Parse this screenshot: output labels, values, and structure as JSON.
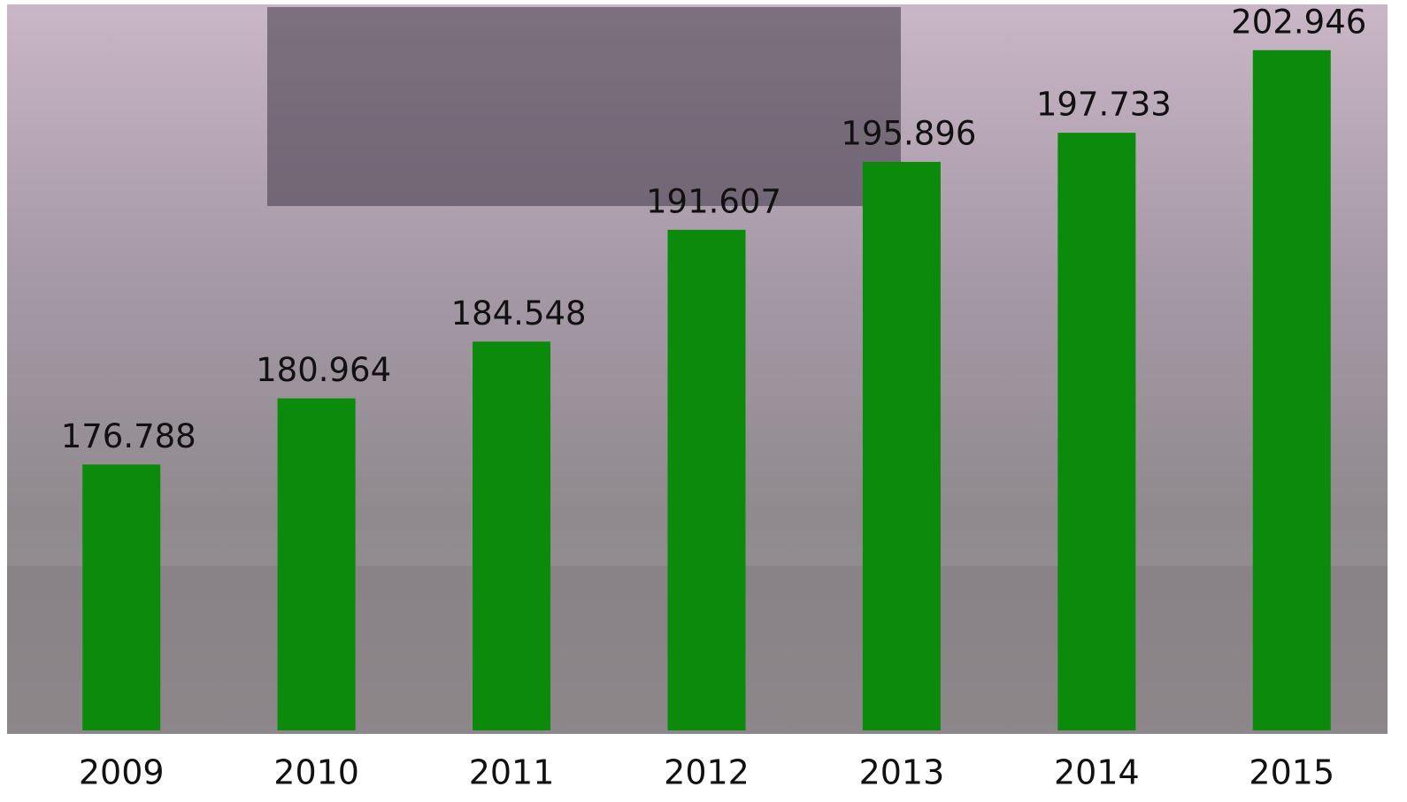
{
  "chart_data": {
    "type": "bar",
    "categories": [
      "2009",
      "2010",
      "2011",
      "2012",
      "2013",
      "2014",
      "2015"
    ],
    "values": [
      176788,
      180964,
      184548,
      191607,
      195896,
      197733,
      202946
    ],
    "value_labels": [
      "176.788",
      "180.964",
      "184.548",
      "191.607",
      "195.896",
      "197.733",
      "202.946"
    ],
    "color": "#0b8a0b",
    "ylim": [
      160000,
      205000
    ]
  }
}
